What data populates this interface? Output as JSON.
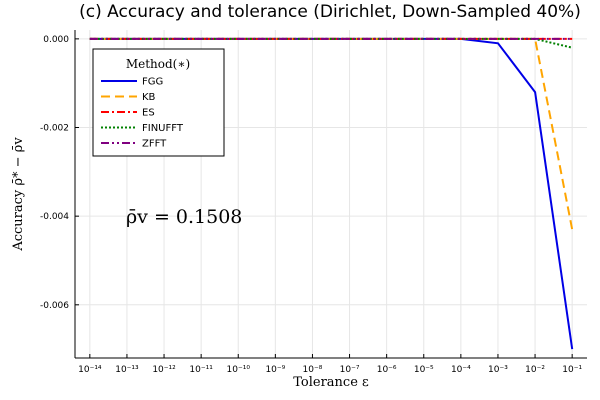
{
  "chart_data": {
    "type": "line",
    "title": "(c) Accuracy and tolerance (Dirichlet, Down-Sampled 40%)",
    "xlabel": "Tolerance ε",
    "ylabel": "Accuracy ρ̄* − ρ̄v",
    "x_scale": "log10",
    "x_exponents": [
      -14,
      -13,
      -12,
      -11,
      -10,
      -9,
      -8,
      -7,
      -6,
      -5,
      -4,
      -3,
      -2,
      -1
    ],
    "x_tick_labels": [
      "10⁻¹⁴",
      "10⁻¹³",
      "10⁻¹²",
      "10⁻¹¹",
      "10⁻¹⁰",
      "10⁻⁹",
      "10⁻⁸",
      "10⁻⁷",
      "10⁻⁶",
      "10⁻⁵",
      "10⁻⁴",
      "10⁻³",
      "10⁻²",
      "10⁻¹"
    ],
    "y_ticks": [
      0,
      -0.002,
      -0.004,
      -0.006
    ],
    "y_tick_labels": [
      "0.000",
      "-0.002",
      "-0.004",
      "-0.006"
    ],
    "ylim": [
      -0.0072,
      0.0002
    ],
    "grid": true,
    "legend": {
      "title": "Method(∗)",
      "placement": "top-left"
    },
    "annotation": "ρ̄v = 0.1508",
    "series": [
      {
        "name": "FGG",
        "color": "#0000e6",
        "dash": "solid",
        "x": [
          -14,
          -13,
          -12,
          -11,
          -10,
          -9,
          -8,
          -7,
          -6,
          -5,
          -4,
          -3,
          -2,
          -1
        ],
        "y": [
          0,
          0,
          0,
          0,
          0,
          0,
          0,
          0,
          0,
          0,
          0,
          -0.0001,
          -0.0012,
          -0.007
        ]
      },
      {
        "name": "KB",
        "color": "#ffa500",
        "dash": "dashed",
        "x": [
          -14,
          -13,
          -12,
          -11,
          -10,
          -9,
          -8,
          -7,
          -6,
          -5,
          -4,
          -3,
          -2,
          -1
        ],
        "y": [
          0,
          0,
          0,
          0,
          0,
          0,
          0,
          0,
          0,
          0,
          0,
          0,
          0,
          -0.0043
        ]
      },
      {
        "name": "ES",
        "color": "#ff0000",
        "dash": "dashdot",
        "x": [
          -14,
          -13,
          -12,
          -11,
          -10,
          -9,
          -8,
          -7,
          -6,
          -5,
          -4,
          -3,
          -2,
          -1
        ],
        "y": [
          0,
          0,
          0,
          0,
          0,
          0,
          0,
          0,
          0,
          0,
          0,
          0,
          0,
          0
        ]
      },
      {
        "name": "FINUFFT",
        "color": "#008000",
        "dash": "dotted",
        "x": [
          -14,
          -13,
          -12,
          -11,
          -10,
          -9,
          -8,
          -7,
          -6,
          -5,
          -4,
          -3,
          -2,
          -1
        ],
        "y": [
          0,
          0,
          0,
          0,
          0,
          0,
          0,
          0,
          0,
          0,
          0,
          0,
          0,
          -0.0002
        ]
      },
      {
        "name": "ZFFT",
        "color": "#800080",
        "dash": "dashdotdot",
        "x": [
          -14,
          -13,
          -12,
          -11,
          -10,
          -9,
          -8,
          -7,
          -6,
          -5,
          -4,
          -3,
          -2,
          -1
        ],
        "y": [
          0,
          0,
          0,
          0,
          0,
          0,
          0,
          0,
          0,
          0,
          0,
          0,
          0,
          0
        ]
      }
    ]
  }
}
